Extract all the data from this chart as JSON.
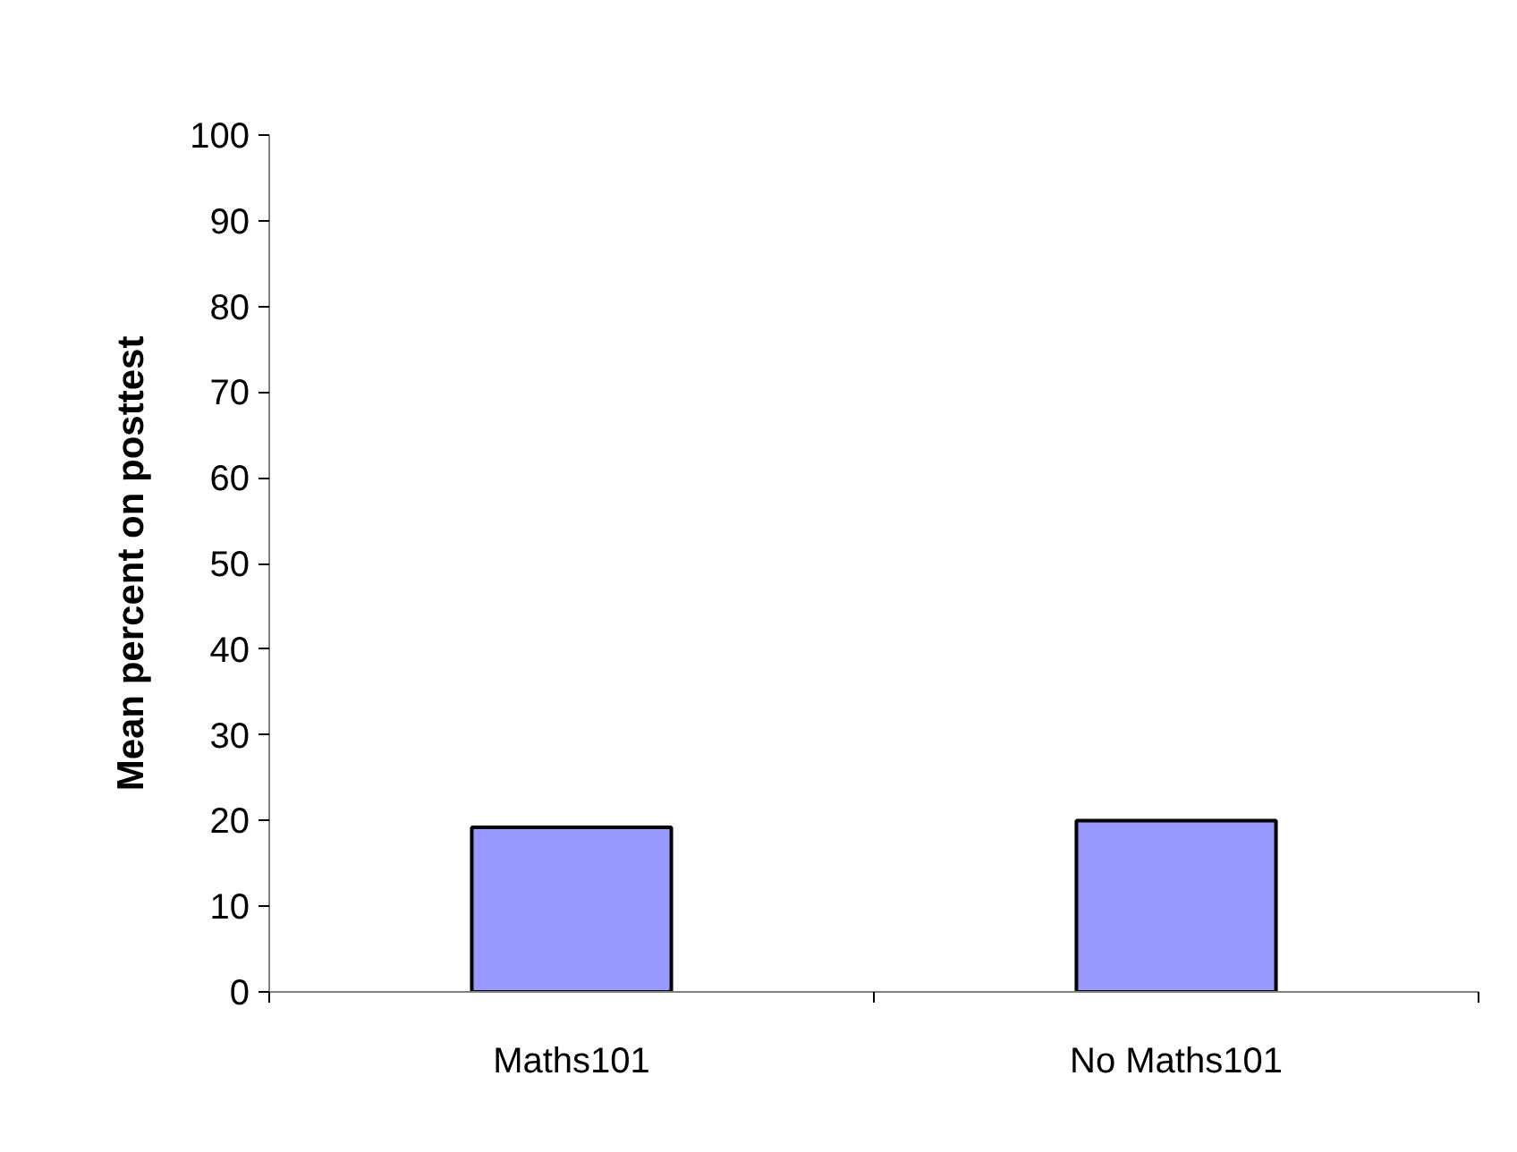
{
  "chart_data": {
    "type": "bar",
    "ylabel": "Mean percent on posttest",
    "categories": [
      "Maths101",
      "No Maths101"
    ],
    "values": [
      19.2,
      20
    ],
    "color": "#9999ff",
    "ylim": [
      0,
      100
    ],
    "yticks": [
      0,
      10,
      20,
      30,
      40,
      50,
      60,
      70,
      80,
      90,
      100
    ],
    "grid": false
  }
}
